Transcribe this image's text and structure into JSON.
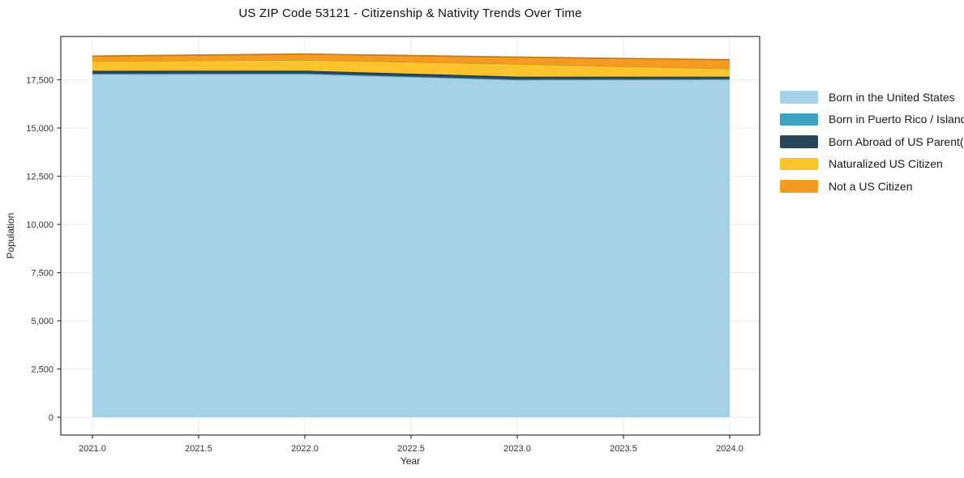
{
  "title": "US ZIP Code 53121 - Citizenship & Nativity Trends Over Time",
  "axes": {
    "x_label": "Year",
    "y_label": "Population",
    "x_ticks": [
      {
        "label": "2021.0",
        "value": 2021.0
      },
      {
        "label": "2021.5",
        "value": 2021.5
      },
      {
        "label": "2022.0",
        "value": 2022.0
      },
      {
        "label": "2022.5",
        "value": 2022.5
      },
      {
        "label": "2023.0",
        "value": 2023.0
      },
      {
        "label": "2023.5",
        "value": 2023.5
      },
      {
        "label": "2024.0",
        "value": 2024.0
      }
    ],
    "y_ticks": [
      {
        "label": "0",
        "value": 0
      },
      {
        "label": "2,500",
        "value": 2500
      },
      {
        "label": "5,000",
        "value": 5000
      },
      {
        "label": "7,500",
        "value": 7500
      },
      {
        "label": "10,000",
        "value": 10000
      },
      {
        "label": "12,500",
        "value": 12500
      },
      {
        "label": "15,000",
        "value": 15000
      },
      {
        "label": "17,500",
        "value": 17500
      }
    ]
  },
  "chart_data": {
    "type": "area",
    "stacked": true,
    "title": "US ZIP Code 53121 - Citizenship & Nativity Trends Over Time",
    "xlabel": "Year",
    "ylabel": "Population",
    "x": [
      2021,
      2022,
      2023,
      2024
    ],
    "series": [
      {
        "name": "Born in the United States",
        "color": "#a6d2e7",
        "values": [
          17800,
          17810,
          17500,
          17520
        ]
      },
      {
        "name": "Born in Puerto Rico / Islands",
        "color": "#3ba2bf",
        "values": [
          25,
          25,
          25,
          25
        ]
      },
      {
        "name": "Born Abroad of US Parent(s)",
        "color": "#27465c",
        "values": [
          140,
          140,
          140,
          115
        ]
      },
      {
        "name": "Naturalized US Citizen",
        "color": "#fcc32d",
        "values": [
          505,
          560,
          660,
          420
        ]
      },
      {
        "name": "Not a US Citizen",
        "color": "#f59b22",
        "values": [
          260,
          300,
          350,
          460
        ]
      }
    ],
    "totals": [
      18730,
      18835,
      18675,
      18540
    ],
    "xlim": [
      2020.85,
      2024.14
    ],
    "ylim": [
      -925,
      19750
    ],
    "grid": true,
    "legend_position": "outside-right",
    "colors": {
      "grid": "#e9e9e9",
      "spine": "#333333",
      "tick_text": "#333333",
      "background": "#ffffff"
    }
  }
}
